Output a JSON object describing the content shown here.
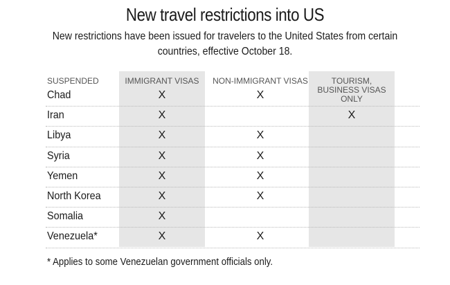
{
  "chart_data": {
    "type": "table",
    "title": "New travel restrictions into US",
    "subtitle": "New restrictions have been issued for travelers to the United States from certain countries, effective October 18.",
    "row_header": "SUSPENDED",
    "columns": [
      "IMMIGRANT VISAS",
      "NON-IMMIGRANT VISAS",
      "TOURISM, BUSINESS VISAS ONLY"
    ],
    "mark_symbol": "X",
    "rows": [
      {
        "country": "Chad",
        "values": [
          true,
          true,
          false
        ]
      },
      {
        "country": "Iran",
        "values": [
          true,
          false,
          true
        ]
      },
      {
        "country": "Libya",
        "values": [
          true,
          true,
          false
        ]
      },
      {
        "country": "Syria",
        "values": [
          true,
          true,
          false
        ]
      },
      {
        "country": "Yemen",
        "values": [
          true,
          true,
          false
        ]
      },
      {
        "country": "North Korea",
        "values": [
          true,
          true,
          false
        ]
      },
      {
        "country": "Somalia",
        "values": [
          true,
          false,
          false
        ]
      },
      {
        "country": "Venezuela*",
        "values": [
          true,
          true,
          false
        ]
      }
    ],
    "footnote": "* Applies to some Venezuelan government officials only.",
    "colors": {
      "column_band": "#e6e6e6",
      "text": "#1a1a1a",
      "header_text": "#555555"
    }
  }
}
